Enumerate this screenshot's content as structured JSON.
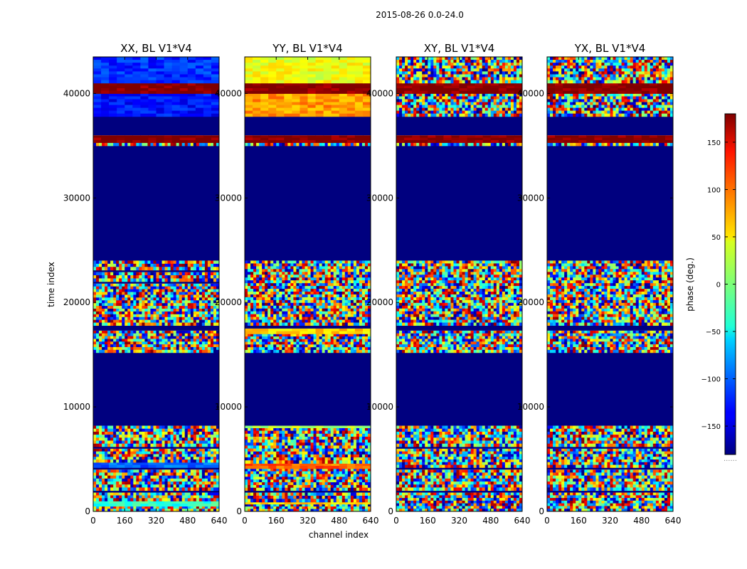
{
  "chart_data": {
    "type": "heatmap",
    "suptitle": "2015-08-26 0.0-24.0",
    "xlabel": "channel index",
    "ylabel": "time index",
    "xlim": [
      0,
      640
    ],
    "ylim": [
      0,
      43500
    ],
    "xticks": [
      0,
      160,
      320,
      480,
      640
    ],
    "yticks": [
      0,
      10000,
      20000,
      30000,
      40000
    ],
    "xtick_labels": [
      "0",
      "160",
      "320",
      "480",
      "640"
    ],
    "ytick_labels": [
      "0",
      "10000",
      "20000",
      "30000",
      "40000"
    ],
    "colormap": "jet",
    "colorbar": {
      "label": "phase (deg.)",
      "range": [
        -180,
        180
      ],
      "ticks": [
        150,
        100,
        50,
        0,
        -50,
        -100,
        -150
      ],
      "tick_labels": [
        "150",
        "100",
        "50",
        "0",
        "−50",
        "−100",
        "−150"
      ],
      "extra_label": "......"
    },
    "panels": [
      {
        "title": "XX, BL V1*V4",
        "bands": [
          {
            "t0": 0,
            "t1": 500,
            "kind": "noise"
          },
          {
            "t0": 500,
            "t1": 1000,
            "kind": "phase",
            "phase": -30
          },
          {
            "t0": 1000,
            "t1": 1800,
            "kind": "noise"
          },
          {
            "t0": 1800,
            "t1": 2000,
            "kind": "flag"
          },
          {
            "t0": 2000,
            "t1": 4000,
            "kind": "noise"
          },
          {
            "t0": 4000,
            "t1": 4200,
            "kind": "flag"
          },
          {
            "t0": 4200,
            "t1": 4700,
            "kind": "phase",
            "phase": -100
          },
          {
            "t0": 4700,
            "t1": 6000,
            "kind": "noise"
          },
          {
            "t0": 6000,
            "t1": 6200,
            "kind": "flag"
          },
          {
            "t0": 6200,
            "t1": 8200,
            "kind": "noise"
          },
          {
            "t0": 8200,
            "t1": 15200,
            "kind": "flag"
          },
          {
            "t0": 15200,
            "t1": 17300,
            "kind": "noise"
          },
          {
            "t0": 17300,
            "t1": 17800,
            "kind": "flag"
          },
          {
            "t0": 17800,
            "t1": 21800,
            "kind": "noise"
          },
          {
            "t0": 21800,
            "t1": 22000,
            "kind": "flag"
          },
          {
            "t0": 22000,
            "t1": 22900,
            "kind": "noise"
          },
          {
            "t0": 22900,
            "t1": 23100,
            "kind": "flag"
          },
          {
            "t0": 23100,
            "t1": 24000,
            "kind": "noise"
          },
          {
            "t0": 24000,
            "t1": 35000,
            "kind": "flag"
          },
          {
            "t0": 35000,
            "t1": 35300,
            "kind": "noise"
          },
          {
            "t0": 35300,
            "t1": 36000,
            "kind": "phase",
            "phase": 180
          },
          {
            "t0": 36000,
            "t1": 37800,
            "kind": "flag"
          },
          {
            "t0": 37800,
            "t1": 40000,
            "kind": "phase",
            "phase": -130
          },
          {
            "t0": 40000,
            "t1": 41000,
            "kind": "phase",
            "phase": 180
          },
          {
            "t0": 41000,
            "t1": 43500,
            "kind": "phase",
            "phase": -120
          }
        ]
      },
      {
        "title": "YY, BL V1*V4",
        "bands": [
          {
            "t0": 0,
            "t1": 700,
            "kind": "noise"
          },
          {
            "t0": 700,
            "t1": 900,
            "kind": "phase",
            "phase": 60
          },
          {
            "t0": 900,
            "t1": 1800,
            "kind": "noise"
          },
          {
            "t0": 1800,
            "t1": 2000,
            "kind": "flag"
          },
          {
            "t0": 2000,
            "t1": 4100,
            "kind": "noise"
          },
          {
            "t0": 4100,
            "t1": 4600,
            "kind": "phase",
            "phase": 100
          },
          {
            "t0": 4600,
            "t1": 8000,
            "kind": "noise"
          },
          {
            "t0": 8000,
            "t1": 8200,
            "kind": "phase",
            "phase": 20
          },
          {
            "t0": 8200,
            "t1": 15200,
            "kind": "flag"
          },
          {
            "t0": 15200,
            "t1": 17000,
            "kind": "noise"
          },
          {
            "t0": 17000,
            "t1": 17500,
            "kind": "phase",
            "phase": 60
          },
          {
            "t0": 17500,
            "t1": 17800,
            "kind": "flag"
          },
          {
            "t0": 17800,
            "t1": 24000,
            "kind": "noise"
          },
          {
            "t0": 24000,
            "t1": 35000,
            "kind": "flag"
          },
          {
            "t0": 35000,
            "t1": 35300,
            "kind": "noise"
          },
          {
            "t0": 35300,
            "t1": 36000,
            "kind": "phase",
            "phase": 180
          },
          {
            "t0": 36000,
            "t1": 37800,
            "kind": "flag"
          },
          {
            "t0": 37800,
            "t1": 40000,
            "kind": "phase",
            "phase": 80
          },
          {
            "t0": 40000,
            "t1": 41000,
            "kind": "phase",
            "phase": 180
          },
          {
            "t0": 41000,
            "t1": 43500,
            "kind": "phase",
            "phase": 40
          }
        ]
      },
      {
        "title": "XY, BL V1*V4",
        "bands": [
          {
            "t0": 0,
            "t1": 1800,
            "kind": "noise"
          },
          {
            "t0": 1800,
            "t1": 2000,
            "kind": "flag"
          },
          {
            "t0": 2000,
            "t1": 4000,
            "kind": "noise"
          },
          {
            "t0": 4000,
            "t1": 4200,
            "kind": "flag"
          },
          {
            "t0": 4200,
            "t1": 6000,
            "kind": "noise"
          },
          {
            "t0": 6000,
            "t1": 6200,
            "kind": "flag"
          },
          {
            "t0": 6200,
            "t1": 8200,
            "kind": "noise"
          },
          {
            "t0": 8200,
            "t1": 15200,
            "kind": "flag"
          },
          {
            "t0": 15200,
            "t1": 17300,
            "kind": "noise"
          },
          {
            "t0": 17300,
            "t1": 17800,
            "kind": "flag"
          },
          {
            "t0": 17800,
            "t1": 24000,
            "kind": "noise"
          },
          {
            "t0": 24000,
            "t1": 35000,
            "kind": "flag"
          },
          {
            "t0": 35000,
            "t1": 35300,
            "kind": "noise"
          },
          {
            "t0": 35300,
            "t1": 36000,
            "kind": "phase",
            "phase": 180
          },
          {
            "t0": 36000,
            "t1": 37800,
            "kind": "flag"
          },
          {
            "t0": 37800,
            "t1": 40000,
            "kind": "noise"
          },
          {
            "t0": 40000,
            "t1": 41000,
            "kind": "phase",
            "phase": 180
          },
          {
            "t0": 41000,
            "t1": 43500,
            "kind": "noise"
          }
        ]
      },
      {
        "title": "YX, BL V1*V4",
        "bands": [
          {
            "t0": 0,
            "t1": 1800,
            "kind": "noise"
          },
          {
            "t0": 1800,
            "t1": 2000,
            "kind": "flag"
          },
          {
            "t0": 2000,
            "t1": 4000,
            "kind": "noise"
          },
          {
            "t0": 4000,
            "t1": 4200,
            "kind": "flag"
          },
          {
            "t0": 4200,
            "t1": 6000,
            "kind": "noise"
          },
          {
            "t0": 6000,
            "t1": 6200,
            "kind": "flag"
          },
          {
            "t0": 6200,
            "t1": 8200,
            "kind": "noise"
          },
          {
            "t0": 8200,
            "t1": 15200,
            "kind": "flag"
          },
          {
            "t0": 15200,
            "t1": 17300,
            "kind": "noise"
          },
          {
            "t0": 17300,
            "t1": 17800,
            "kind": "flag"
          },
          {
            "t0": 17800,
            "t1": 24000,
            "kind": "noise"
          },
          {
            "t0": 24000,
            "t1": 35000,
            "kind": "flag"
          },
          {
            "t0": 35000,
            "t1": 35300,
            "kind": "noise"
          },
          {
            "t0": 35300,
            "t1": 36000,
            "kind": "phase",
            "phase": 180
          },
          {
            "t0": 36000,
            "t1": 37800,
            "kind": "flag"
          },
          {
            "t0": 37800,
            "t1": 40000,
            "kind": "noise"
          },
          {
            "t0": 40000,
            "t1": 41000,
            "kind": "phase",
            "phase": 180
          },
          {
            "t0": 41000,
            "t1": 43500,
            "kind": "noise"
          }
        ]
      }
    ]
  }
}
